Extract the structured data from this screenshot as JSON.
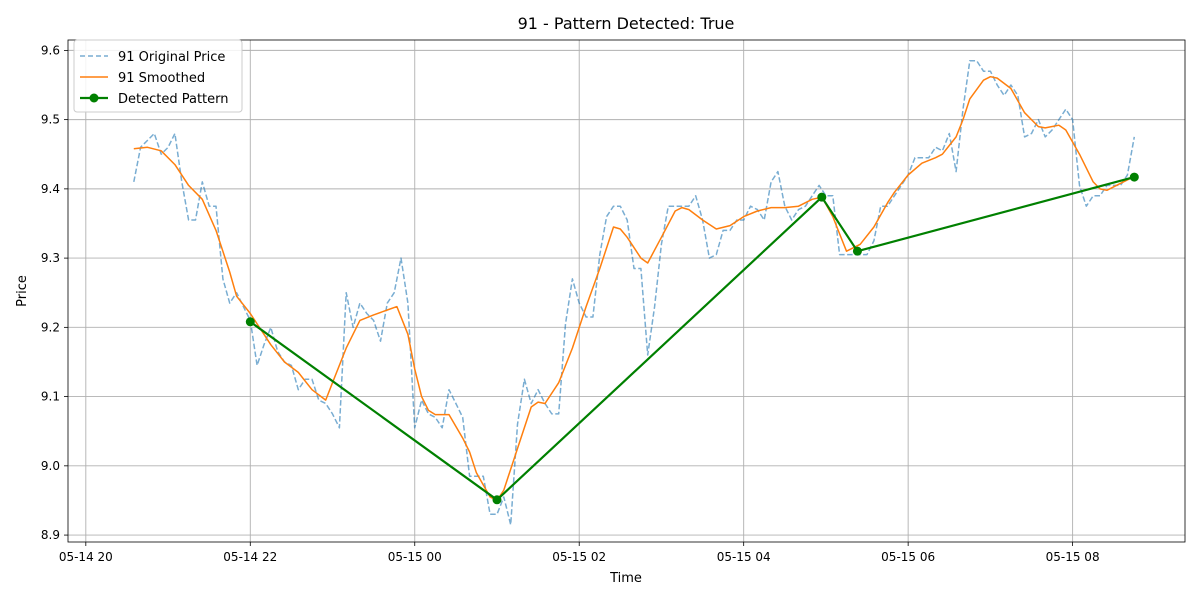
{
  "chart_data": {
    "type": "line",
    "title": "91 - Pattern Detected: True",
    "xlabel": "Time",
    "ylabel": "Price",
    "x_tick_labels": [
      "05-14 20",
      "05-14 22",
      "05-15 00",
      "05-15 02",
      "05-15 04",
      "05-15 06",
      "05-15 08"
    ],
    "y_ticks": [
      8.9,
      9.0,
      9.1,
      9.2,
      9.3,
      9.4,
      9.5,
      9.6
    ],
    "y_tick_labels": [
      "8.9",
      "9.0",
      "9.1",
      "9.2",
      "9.3",
      "9.4",
      "9.5",
      "9.6"
    ],
    "xlim": [
      "2024-05-14 19:47",
      "2024-05-15 09:22"
    ],
    "ylim": [
      8.89,
      9.615
    ],
    "grid": true,
    "legend_position": "top-left",
    "series": [
      {
        "name": "91 Original Price",
        "style": "dashed",
        "color": "#1f77b4",
        "points": [
          [
            "2024-05-14 20:35",
            9.41
          ],
          [
            "2024-05-14 20:40",
            9.46
          ],
          [
            "2024-05-14 20:45",
            9.47
          ],
          [
            "2024-05-14 20:50",
            9.48
          ],
          [
            "2024-05-14 20:55",
            9.45
          ],
          [
            "2024-05-14 21:00",
            9.46
          ],
          [
            "2024-05-14 21:05",
            9.48
          ],
          [
            "2024-05-14 21:10",
            9.41
          ],
          [
            "2024-05-14 21:15",
            9.355
          ],
          [
            "2024-05-14 21:20",
            9.355
          ],
          [
            "2024-05-14 21:25",
            9.41
          ],
          [
            "2024-05-14 21:30",
            9.375
          ],
          [
            "2024-05-14 21:35",
            9.375
          ],
          [
            "2024-05-14 21:40",
            9.27
          ],
          [
            "2024-05-14 21:45",
            9.235
          ],
          [
            "2024-05-14 21:50",
            9.25
          ],
          [
            "2024-05-14 21:55",
            9.23
          ],
          [
            "2024-05-14 22:00",
            9.21
          ],
          [
            "2024-05-14 22:05",
            9.145
          ],
          [
            "2024-05-14 22:10",
            9.175
          ],
          [
            "2024-05-14 22:15",
            9.2
          ],
          [
            "2024-05-14 22:20",
            9.165
          ],
          [
            "2024-05-14 22:25",
            9.15
          ],
          [
            "2024-05-14 22:30",
            9.145
          ],
          [
            "2024-05-14 22:35",
            9.11
          ],
          [
            "2024-05-14 22:40",
            9.125
          ],
          [
            "2024-05-14 22:45",
            9.125
          ],
          [
            "2024-05-14 22:50",
            9.095
          ],
          [
            "2024-05-14 22:55",
            9.09
          ],
          [
            "2024-05-14 23:00",
            9.075
          ],
          [
            "2024-05-14 23:05",
            9.055
          ],
          [
            "2024-05-14 23:10",
            9.25
          ],
          [
            "2024-05-14 23:15",
            9.2
          ],
          [
            "2024-05-14 23:20",
            9.235
          ],
          [
            "2024-05-14 23:25",
            9.22
          ],
          [
            "2024-05-14 23:30",
            9.21
          ],
          [
            "2024-05-14 23:35",
            9.18
          ],
          [
            "2024-05-14 23:40",
            9.235
          ],
          [
            "2024-05-14 23:45",
            9.25
          ],
          [
            "2024-05-14 23:50",
            9.3
          ],
          [
            "2024-05-14 23:55",
            9.235
          ],
          [
            "2024-05-15 00:00",
            9.055
          ],
          [
            "2024-05-15 00:05",
            9.095
          ],
          [
            "2024-05-15 00:10",
            9.075
          ],
          [
            "2024-05-15 00:15",
            9.07
          ],
          [
            "2024-05-15 00:20",
            9.055
          ],
          [
            "2024-05-15 00:25",
            9.11
          ],
          [
            "2024-05-15 00:30",
            9.09
          ],
          [
            "2024-05-15 00:35",
            9.07
          ],
          [
            "2024-05-15 00:40",
            8.985
          ],
          [
            "2024-05-15 00:45",
            8.985
          ],
          [
            "2024-05-15 00:50",
            8.985
          ],
          [
            "2024-05-15 00:55",
            8.93
          ],
          [
            "2024-05-15 01:00",
            8.93
          ],
          [
            "2024-05-15 01:05",
            8.955
          ],
          [
            "2024-05-15 01:10",
            8.915
          ],
          [
            "2024-05-15 01:15",
            9.06
          ],
          [
            "2024-05-15 01:20",
            9.125
          ],
          [
            "2024-05-15 01:25",
            9.09
          ],
          [
            "2024-05-15 01:30",
            9.11
          ],
          [
            "2024-05-15 01:35",
            9.09
          ],
          [
            "2024-05-15 01:40",
            9.075
          ],
          [
            "2024-05-15 01:45",
            9.075
          ],
          [
            "2024-05-15 01:50",
            9.205
          ],
          [
            "2024-05-15 01:55",
            9.27
          ],
          [
            "2024-05-15 02:00",
            9.235
          ],
          [
            "2024-05-15 02:05",
            9.215
          ],
          [
            "2024-05-15 02:10",
            9.215
          ],
          [
            "2024-05-15 02:15",
            9.305
          ],
          [
            "2024-05-15 02:20",
            9.36
          ],
          [
            "2024-05-15 02:25",
            9.375
          ],
          [
            "2024-05-15 02:30",
            9.375
          ],
          [
            "2024-05-15 02:35",
            9.355
          ],
          [
            "2024-05-15 02:40",
            9.285
          ],
          [
            "2024-05-15 02:45",
            9.285
          ],
          [
            "2024-05-15 02:50",
            9.16
          ],
          [
            "2024-05-15 02:55",
            9.23
          ],
          [
            "2024-05-15 03:00",
            9.32
          ],
          [
            "2024-05-15 03:05",
            9.375
          ],
          [
            "2024-05-15 03:10",
            9.375
          ],
          [
            "2024-05-15 03:15",
            9.375
          ],
          [
            "2024-05-15 03:20",
            9.375
          ],
          [
            "2024-05-15 03:25",
            9.39
          ],
          [
            "2024-05-15 03:30",
            9.355
          ],
          [
            "2024-05-15 03:35",
            9.3
          ],
          [
            "2024-05-15 03:40",
            9.305
          ],
          [
            "2024-05-15 03:45",
            9.34
          ],
          [
            "2024-05-15 03:50",
            9.34
          ],
          [
            "2024-05-15 03:55",
            9.355
          ],
          [
            "2024-05-15 04:00",
            9.355
          ],
          [
            "2024-05-15 04:05",
            9.375
          ],
          [
            "2024-05-15 04:10",
            9.37
          ],
          [
            "2024-05-15 04:15",
            9.355
          ],
          [
            "2024-05-15 04:20",
            9.41
          ],
          [
            "2024-05-15 04:25",
            9.425
          ],
          [
            "2024-05-15 04:30",
            9.375
          ],
          [
            "2024-05-15 04:35",
            9.355
          ],
          [
            "2024-05-15 04:40",
            9.37
          ],
          [
            "2024-05-15 04:45",
            9.375
          ],
          [
            "2024-05-15 04:50",
            9.39
          ],
          [
            "2024-05-15 04:55",
            9.405
          ],
          [
            "2024-05-15 05:00",
            9.39
          ],
          [
            "2024-05-15 05:05",
            9.39
          ],
          [
            "2024-05-15 05:10",
            9.305
          ],
          [
            "2024-05-15 05:15",
            9.305
          ],
          [
            "2024-05-15 05:20",
            9.305
          ],
          [
            "2024-05-15 05:25",
            9.305
          ],
          [
            "2024-05-15 05:30",
            9.305
          ],
          [
            "2024-05-15 05:35",
            9.325
          ],
          [
            "2024-05-15 05:40",
            9.375
          ],
          [
            "2024-05-15 05:45",
            9.375
          ],
          [
            "2024-05-15 05:50",
            9.39
          ],
          [
            "2024-05-15 05:55",
            9.405
          ],
          [
            "2024-05-15 06:00",
            9.42
          ],
          [
            "2024-05-15 06:05",
            9.445
          ],
          [
            "2024-05-15 06:10",
            9.445
          ],
          [
            "2024-05-15 06:15",
            9.445
          ],
          [
            "2024-05-15 06:20",
            9.46
          ],
          [
            "2024-05-15 06:25",
            9.455
          ],
          [
            "2024-05-15 06:30",
            9.48
          ],
          [
            "2024-05-15 06:35",
            9.425
          ],
          [
            "2024-05-15 06:40",
            9.515
          ],
          [
            "2024-05-15 06:45",
            9.585
          ],
          [
            "2024-05-15 06:50",
            9.585
          ],
          [
            "2024-05-15 06:55",
            9.57
          ],
          [
            "2024-05-15 07:00",
            9.57
          ],
          [
            "2024-05-15 07:05",
            9.55
          ],
          [
            "2024-05-15 07:10",
            9.535
          ],
          [
            "2024-05-15 07:15",
            9.55
          ],
          [
            "2024-05-15 07:20",
            9.535
          ],
          [
            "2024-05-15 07:25",
            9.475
          ],
          [
            "2024-05-15 07:30",
            9.48
          ],
          [
            "2024-05-15 07:35",
            9.5
          ],
          [
            "2024-05-15 07:40",
            9.475
          ],
          [
            "2024-05-15 07:45",
            9.485
          ],
          [
            "2024-05-15 07:50",
            9.5
          ],
          [
            "2024-05-15 07:55",
            9.515
          ],
          [
            "2024-05-15 08:00",
            9.5
          ],
          [
            "2024-05-15 08:05",
            9.405
          ],
          [
            "2024-05-15 08:10",
            9.375
          ],
          [
            "2024-05-15 08:15",
            9.39
          ],
          [
            "2024-05-15 08:20",
            9.39
          ],
          [
            "2024-05-15 08:25",
            9.405
          ],
          [
            "2024-05-15 08:30",
            9.405
          ],
          [
            "2024-05-15 08:35",
            9.405
          ],
          [
            "2024-05-15 08:40",
            9.42
          ],
          [
            "2024-05-15 08:45",
            9.475
          ]
        ]
      },
      {
        "name": "91 Smoothed",
        "style": "solid",
        "color": "#ff7f0e",
        "points": [
          [
            "2024-05-14 20:35",
            9.458
          ],
          [
            "2024-05-14 20:45",
            9.46
          ],
          [
            "2024-05-14 20:55",
            9.455
          ],
          [
            "2024-05-14 21:05",
            9.435
          ],
          [
            "2024-05-14 21:15",
            9.405
          ],
          [
            "2024-05-14 21:25",
            9.385
          ],
          [
            "2024-05-14 21:35",
            9.34
          ],
          [
            "2024-05-14 21:45",
            9.28
          ],
          [
            "2024-05-14 21:50",
            9.245
          ],
          [
            "2024-05-14 22:00",
            9.22
          ],
          [
            "2024-05-14 22:05",
            9.205
          ],
          [
            "2024-05-14 22:15",
            9.175
          ],
          [
            "2024-05-14 22:25",
            9.15
          ],
          [
            "2024-05-14 22:35",
            9.135
          ],
          [
            "2024-05-14 22:45",
            9.11
          ],
          [
            "2024-05-14 22:55",
            9.095
          ],
          [
            "2024-05-14 23:00",
            9.12
          ],
          [
            "2024-05-14 23:10",
            9.17
          ],
          [
            "2024-05-14 23:20",
            9.21
          ],
          [
            "2024-05-14 23:30",
            9.218
          ],
          [
            "2024-05-14 23:40",
            9.225
          ],
          [
            "2024-05-14 23:47",
            9.23
          ],
          [
            "2024-05-14 23:55",
            9.19
          ],
          [
            "2024-05-15 00:00",
            9.14
          ],
          [
            "2024-05-15 00:05",
            9.1
          ],
          [
            "2024-05-15 00:10",
            9.08
          ],
          [
            "2024-05-15 00:15",
            9.074
          ],
          [
            "2024-05-15 00:25",
            9.074
          ],
          [
            "2024-05-15 00:35",
            9.04
          ],
          [
            "2024-05-15 00:40",
            9.02
          ],
          [
            "2024-05-15 00:45",
            8.99
          ],
          [
            "2024-05-15 00:55",
            8.955
          ],
          [
            "2024-05-15 01:00",
            8.95
          ],
          [
            "2024-05-15 01:05",
            8.965
          ],
          [
            "2024-05-15 01:15",
            9.025
          ],
          [
            "2024-05-15 01:25",
            9.085
          ],
          [
            "2024-05-15 01:30",
            9.092
          ],
          [
            "2024-05-15 01:35",
            9.09
          ],
          [
            "2024-05-15 01:45",
            9.12
          ],
          [
            "2024-05-15 01:55",
            9.17
          ],
          [
            "2024-05-15 02:05",
            9.23
          ],
          [
            "2024-05-15 02:15",
            9.285
          ],
          [
            "2024-05-15 02:25",
            9.345
          ],
          [
            "2024-05-15 02:30",
            9.342
          ],
          [
            "2024-05-15 02:35",
            9.33
          ],
          [
            "2024-05-15 02:45",
            9.3
          ],
          [
            "2024-05-15 02:50",
            9.293
          ],
          [
            "2024-05-15 03:00",
            9.33
          ],
          [
            "2024-05-15 03:10",
            9.368
          ],
          [
            "2024-05-15 03:15",
            9.373
          ],
          [
            "2024-05-15 03:20",
            9.37
          ],
          [
            "2024-05-15 03:30",
            9.355
          ],
          [
            "2024-05-15 03:40",
            9.342
          ],
          [
            "2024-05-15 03:50",
            9.347
          ],
          [
            "2024-05-15 04:00",
            9.36
          ],
          [
            "2024-05-15 04:10",
            9.368
          ],
          [
            "2024-05-15 04:20",
            9.373
          ],
          [
            "2024-05-15 04:30",
            9.373
          ],
          [
            "2024-05-15 04:40",
            9.375
          ],
          [
            "2024-05-15 04:50",
            9.385
          ],
          [
            "2024-05-15 04:57",
            9.388
          ],
          [
            "2024-05-15 05:00",
            9.378
          ],
          [
            "2024-05-15 05:05",
            9.36
          ],
          [
            "2024-05-15 05:10",
            9.335
          ],
          [
            "2024-05-15 05:15",
            9.31
          ],
          [
            "2024-05-15 05:25",
            9.32
          ],
          [
            "2024-05-15 05:35",
            9.345
          ],
          [
            "2024-05-15 05:45",
            9.38
          ],
          [
            "2024-05-15 05:50",
            9.395
          ],
          [
            "2024-05-15 06:00",
            9.42
          ],
          [
            "2024-05-15 06:10",
            9.437
          ],
          [
            "2024-05-15 06:20",
            9.445
          ],
          [
            "2024-05-15 06:25",
            9.45
          ],
          [
            "2024-05-15 06:35",
            9.475
          ],
          [
            "2024-05-15 06:40",
            9.5
          ],
          [
            "2024-05-15 06:45",
            9.53
          ],
          [
            "2024-05-15 06:55",
            9.557
          ],
          [
            "2024-05-15 07:00",
            9.562
          ],
          [
            "2024-05-15 07:05",
            9.56
          ],
          [
            "2024-05-15 07:15",
            9.545
          ],
          [
            "2024-05-15 07:25",
            9.51
          ],
          [
            "2024-05-15 07:35",
            9.49
          ],
          [
            "2024-05-15 07:40",
            9.488
          ],
          [
            "2024-05-15 07:50",
            9.492
          ],
          [
            "2024-05-15 07:55",
            9.485
          ],
          [
            "2024-05-15 08:05",
            9.45
          ],
          [
            "2024-05-15 08:15",
            9.41
          ],
          [
            "2024-05-15 08:20",
            9.4
          ],
          [
            "2024-05-15 08:25",
            9.398
          ],
          [
            "2024-05-15 08:35",
            9.408
          ],
          [
            "2024-05-15 08:45",
            9.418
          ]
        ]
      },
      {
        "name": "Detected Pattern",
        "style": "solid-markers",
        "color": "#008000",
        "points": [
          [
            "2024-05-14 22:00",
            9.208
          ],
          [
            "2024-05-15 01:00",
            8.951
          ],
          [
            "2024-05-15 04:57",
            9.388
          ],
          [
            "2024-05-15 05:23",
            9.31
          ],
          [
            "2024-05-15 08:45",
            9.417
          ]
        ]
      }
    ]
  }
}
